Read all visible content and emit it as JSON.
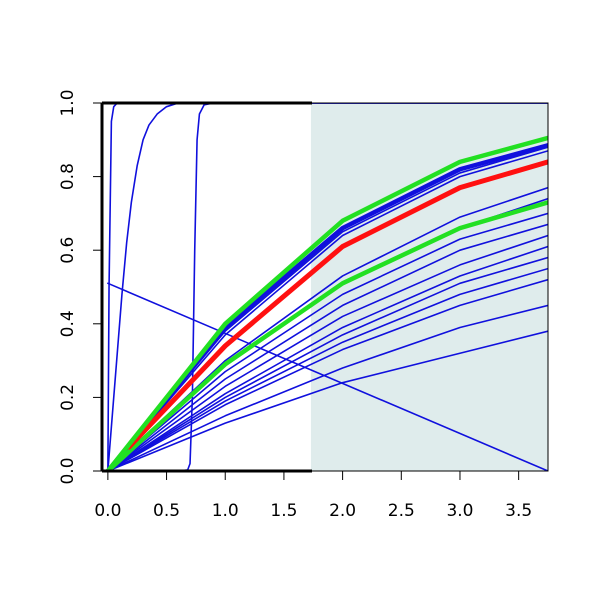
{
  "chart_data": {
    "type": "line",
    "title": "",
    "xlabel": "",
    "ylabel": "",
    "xlim": [
      -0.05,
      3.75
    ],
    "ylim": [
      0,
      1
    ],
    "grid": false,
    "x_ticks": [
      "0.0",
      "0.5",
      "1.0",
      "1.5",
      "2.0",
      "2.5",
      "3.0",
      "3.5"
    ],
    "y_ticks": [
      "0.0",
      "0.2",
      "0.4",
      "0.6",
      "0.8",
      "1.0"
    ],
    "shaded_region": {
      "x_from": 1.73,
      "x_to": 3.75,
      "color": "#dfecec"
    },
    "colors": {
      "curves": "#1010dd",
      "highlight_red": "#ff1010",
      "highlight_green": "#22e022",
      "axis": "#000000"
    },
    "series": [
      {
        "color": "#1010dd",
        "width": 1.6,
        "points": [
          [
            0.0,
            0.0
          ],
          [
            0.01,
            0.5
          ],
          [
            0.03,
            0.95
          ],
          [
            0.05,
            0.99
          ],
          [
            0.08,
            1.0
          ],
          [
            3.75,
            1.0
          ]
        ]
      },
      {
        "color": "#1010dd",
        "width": 1.6,
        "points": [
          [
            0.0,
            0.0
          ],
          [
            0.03,
            0.12
          ],
          [
            0.08,
            0.32
          ],
          [
            0.12,
            0.48
          ],
          [
            0.16,
            0.62
          ],
          [
            0.2,
            0.73
          ],
          [
            0.25,
            0.83
          ],
          [
            0.3,
            0.9
          ],
          [
            0.35,
            0.94
          ],
          [
            0.42,
            0.97
          ],
          [
            0.5,
            0.99
          ],
          [
            0.6,
            1.0
          ],
          [
            3.75,
            1.0
          ]
        ]
      },
      {
        "color": "#1010dd",
        "width": 1.6,
        "points": [
          [
            0.0,
            0.0
          ],
          [
            0.6,
            0.0
          ],
          [
            0.68,
            0.003
          ],
          [
            0.7,
            0.02
          ],
          [
            0.72,
            0.2
          ],
          [
            0.74,
            0.6
          ],
          [
            0.76,
            0.9
          ],
          [
            0.78,
            0.97
          ],
          [
            0.82,
            0.995
          ],
          [
            0.9,
            1.0
          ],
          [
            3.75,
            1.0
          ]
        ]
      },
      {
        "color": "#1010dd",
        "width": 1.6,
        "points": [
          [
            0.0,
            0.51
          ],
          [
            3.75,
            0.0
          ]
        ]
      },
      {
        "color": "#1010dd",
        "width": 1.6,
        "points": [
          [
            0.0,
            0.0
          ],
          [
            1.0,
            0.13
          ],
          [
            2.0,
            0.24
          ],
          [
            3.0,
            0.32
          ],
          [
            3.75,
            0.38
          ]
        ]
      },
      {
        "color": "#1010dd",
        "width": 1.6,
        "points": [
          [
            0.0,
            0.0
          ],
          [
            1.0,
            0.15
          ],
          [
            2.0,
            0.28
          ],
          [
            3.0,
            0.39
          ],
          [
            3.75,
            0.45
          ]
        ]
      },
      {
        "color": "#1010dd",
        "width": 1.6,
        "points": [
          [
            0.0,
            0.0
          ],
          [
            1.0,
            0.18
          ],
          [
            2.0,
            0.33
          ],
          [
            3.0,
            0.45
          ],
          [
            3.75,
            0.52
          ]
        ]
      },
      {
        "color": "#1010dd",
        "width": 1.6,
        "points": [
          [
            0.0,
            0.0
          ],
          [
            1.0,
            0.19
          ],
          [
            2.0,
            0.35
          ],
          [
            3.0,
            0.48
          ],
          [
            3.75,
            0.55
          ]
        ]
      },
      {
        "color": "#1010dd",
        "width": 1.6,
        "points": [
          [
            0.0,
            0.0
          ],
          [
            1.0,
            0.2
          ],
          [
            2.0,
            0.37
          ],
          [
            3.0,
            0.51
          ],
          [
            3.75,
            0.58
          ]
        ]
      },
      {
        "color": "#1010dd",
        "width": 1.6,
        "points": [
          [
            0.0,
            0.0
          ],
          [
            1.0,
            0.21
          ],
          [
            2.0,
            0.39
          ],
          [
            3.0,
            0.53
          ],
          [
            3.75,
            0.61
          ]
        ]
      },
      {
        "color": "#1010dd",
        "width": 1.6,
        "points": [
          [
            0.0,
            0.0
          ],
          [
            1.0,
            0.23
          ],
          [
            2.0,
            0.42
          ],
          [
            3.0,
            0.56
          ],
          [
            3.75,
            0.64
          ]
        ]
      },
      {
        "color": "#1010dd",
        "width": 1.6,
        "points": [
          [
            0.0,
            0.0
          ],
          [
            1.0,
            0.25
          ],
          [
            2.0,
            0.45
          ],
          [
            3.0,
            0.6
          ],
          [
            3.75,
            0.67
          ]
        ]
      },
      {
        "color": "#1010dd",
        "width": 1.6,
        "points": [
          [
            0.0,
            0.0
          ],
          [
            1.0,
            0.27
          ],
          [
            2.0,
            0.48
          ],
          [
            3.0,
            0.63
          ],
          [
            3.75,
            0.7
          ]
        ]
      },
      {
        "color": "#1010dd",
        "width": 1.6,
        "points": [
          [
            0.0,
            0.0
          ],
          [
            1.0,
            0.29
          ],
          [
            2.0,
            0.51
          ],
          [
            3.0,
            0.66
          ],
          [
            3.75,
            0.74
          ]
        ]
      },
      {
        "color": "#1010dd",
        "width": 1.6,
        "points": [
          [
            0.0,
            0.0
          ],
          [
            1.0,
            0.3
          ],
          [
            2.0,
            0.53
          ],
          [
            3.0,
            0.69
          ],
          [
            3.75,
            0.77
          ]
        ]
      },
      {
        "color": "#1010dd",
        "width": 1.6,
        "points": [
          [
            0.0,
            0.0
          ],
          [
            1.0,
            0.37
          ],
          [
            2.0,
            0.64
          ],
          [
            3.0,
            0.8
          ],
          [
            3.75,
            0.87
          ]
        ]
      },
      {
        "color": "#1010dd",
        "width": 1.6,
        "points": [
          [
            0.0,
            0.0
          ],
          [
            1.0,
            0.38
          ],
          [
            2.0,
            0.65
          ],
          [
            3.0,
            0.81
          ],
          [
            3.75,
            0.88
          ]
        ]
      },
      {
        "color": "#1010dd",
        "width": 4.5,
        "points": [
          [
            0.0,
            0.0
          ],
          [
            1.0,
            0.39
          ],
          [
            2.0,
            0.66
          ],
          [
            3.0,
            0.82
          ],
          [
            3.75,
            0.885
          ]
        ]
      },
      {
        "color": "#22e022",
        "width": 4.5,
        "points": [
          [
            0.0,
            0.0
          ],
          [
            1.0,
            0.29
          ],
          [
            2.0,
            0.51
          ],
          [
            3.0,
            0.66
          ],
          [
            3.75,
            0.73
          ]
        ]
      },
      {
        "color": "#ff1010",
        "width": 5,
        "points": [
          [
            0.18,
            0.065
          ],
          [
            1.0,
            0.34
          ],
          [
            2.0,
            0.61
          ],
          [
            3.0,
            0.77
          ],
          [
            3.75,
            0.84
          ]
        ]
      },
      {
        "color": "#22e022",
        "width": 4.5,
        "points": [
          [
            0.0,
            0.0
          ],
          [
            1.0,
            0.4
          ],
          [
            2.0,
            0.68
          ],
          [
            3.0,
            0.84
          ],
          [
            3.75,
            0.905
          ]
        ]
      }
    ]
  }
}
